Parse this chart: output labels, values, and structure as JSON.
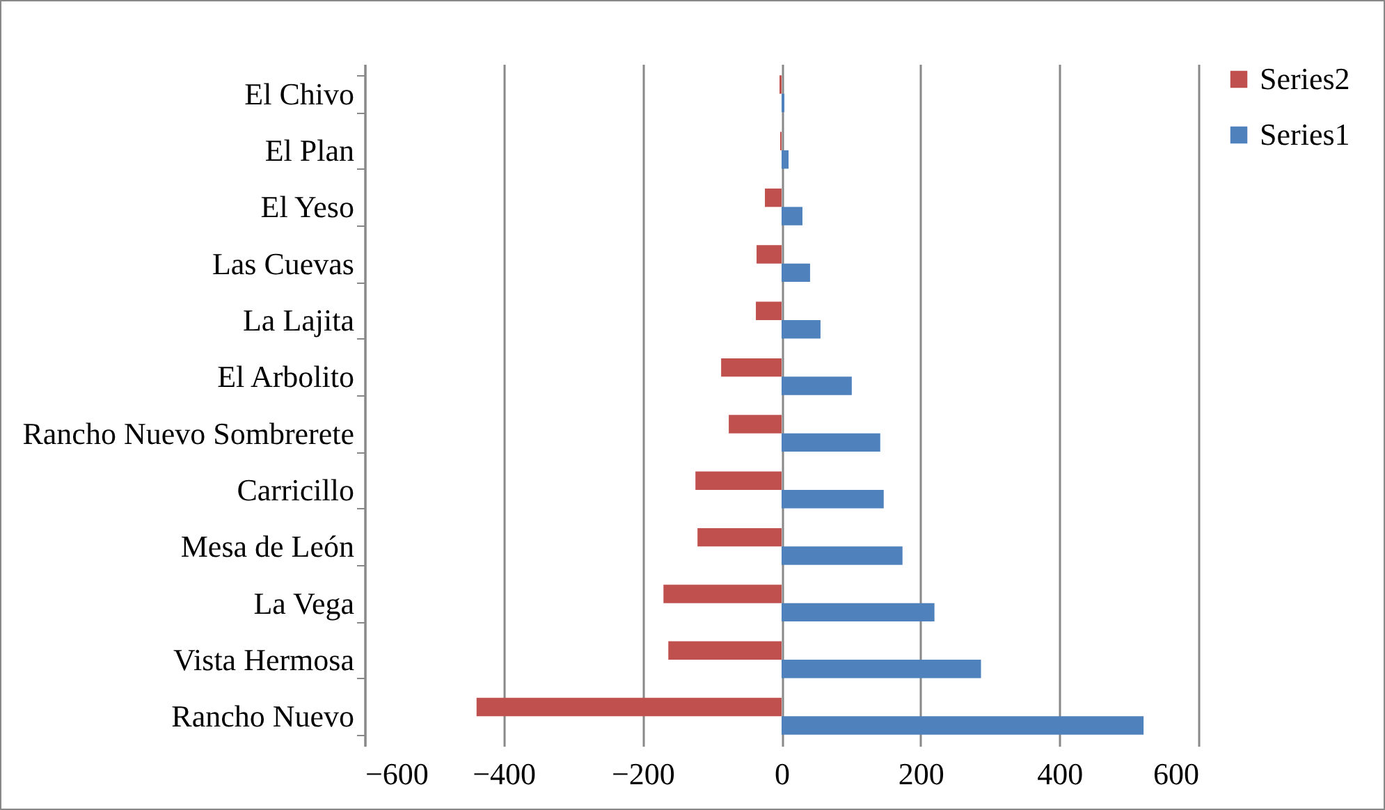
{
  "chart_data": {
    "type": "bar",
    "orientation": "horizontal",
    "categories": [
      "El Chivo",
      "El Plan",
      "El Yeso",
      "Las Cuevas",
      "La Lajita",
      "El Arbolito",
      "Rancho Nuevo Sombrerete",
      "Carricillo",
      "Mesa de León",
      "La Vega",
      "Vista Hermosa",
      "Rancho Nuevo"
    ],
    "series": [
      {
        "name": "Series2",
        "color": "#c0504d",
        "values": [
          -3,
          -2,
          -24,
          -36,
          -37,
          -87,
          -76,
          -124,
          -121,
          -170,
          -163,
          -439
        ]
      },
      {
        "name": "Series1",
        "color": "#4f81bd",
        "values": [
          4,
          10,
          30,
          41,
          56,
          101,
          142,
          147,
          174,
          220,
          287,
          521
        ]
      }
    ],
    "xlim": [
      -600,
      600
    ],
    "xticks": [
      -600,
      -400,
      -200,
      0,
      200,
      400,
      600
    ],
    "grid": "x",
    "legend": "right"
  }
}
